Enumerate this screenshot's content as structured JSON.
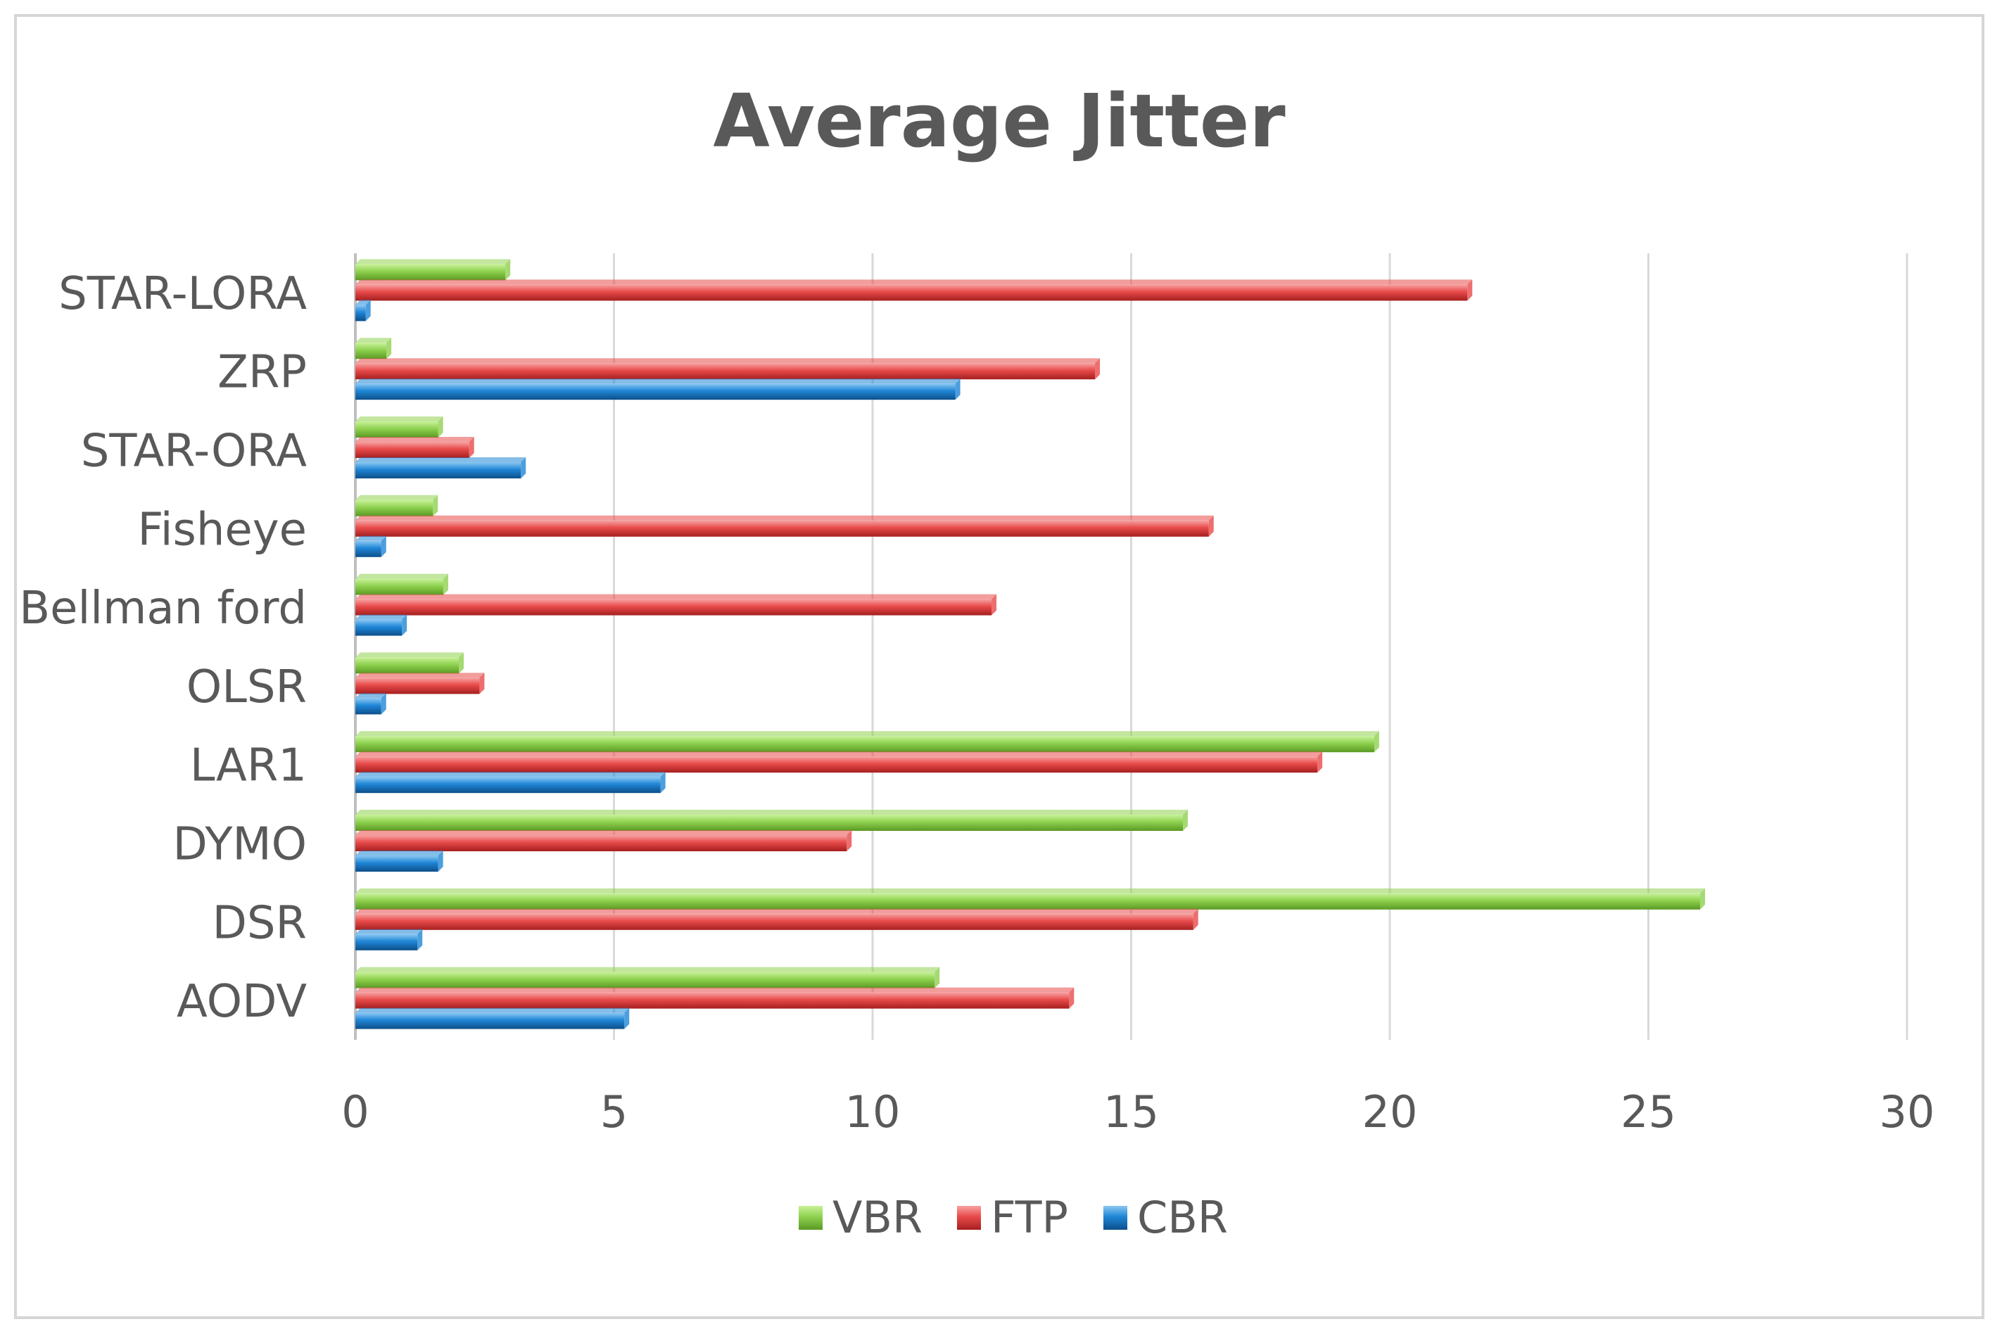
{
  "chart_data": {
    "type": "bar",
    "orientation": "horizontal",
    "title": "Average Jitter",
    "xlabel": "",
    "ylabel": "",
    "xlim": [
      0,
      30
    ],
    "ticks": [
      0,
      5,
      10,
      15,
      20,
      25,
      30
    ],
    "grid": true,
    "legend_position": "bottom",
    "categories": [
      "AODV",
      "DSR",
      "DYMO",
      "LAR1",
      "OLSR",
      "Bellman ford",
      "Fisheye",
      "STAR-ORA",
      "ZRP",
      "STAR-LORA"
    ],
    "series": [
      {
        "name": "VBR",
        "color": "#8fd14f",
        "values": [
          11.2,
          26.0,
          16.0,
          19.7,
          2.0,
          1.7,
          1.5,
          1.6,
          0.6,
          2.9
        ]
      },
      {
        "name": "FTP",
        "color": "#e84a4a",
        "values": [
          13.8,
          16.2,
          9.5,
          18.6,
          2.4,
          12.3,
          16.5,
          2.2,
          14.3,
          21.5
        ]
      },
      {
        "name": "CBR",
        "color": "#1f86d6",
        "values": [
          5.2,
          1.2,
          1.6,
          5.9,
          0.5,
          0.9,
          0.5,
          3.2,
          11.6,
          0.2
        ]
      }
    ]
  }
}
